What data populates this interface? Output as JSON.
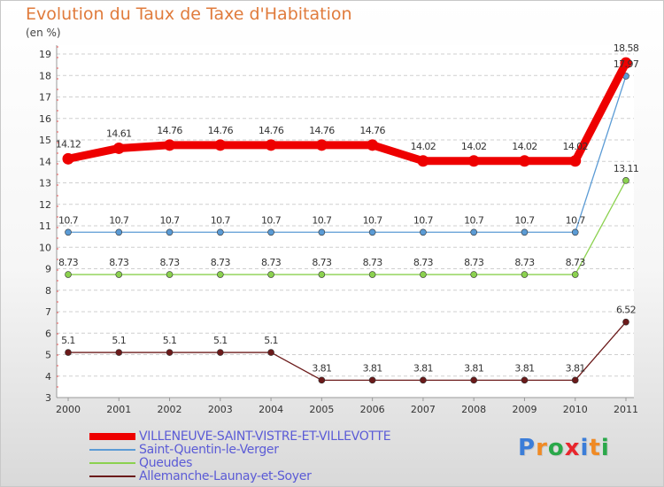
{
  "title": "Evolution du Taux de Taxe d'Habitation",
  "unit_label": "(en %)",
  "brand": {
    "text": "Proxiti",
    "colors": [
      "#3b7dd8",
      "#f08a24",
      "#2aa84a",
      "#e8262d",
      "#3b7dd8",
      "#f08a24",
      "#2aa84a"
    ]
  },
  "chart_data": {
    "type": "line",
    "x": [
      "2000",
      "2001",
      "2002",
      "2003",
      "2004",
      "2005",
      "2006",
      "2007",
      "2008",
      "2009",
      "2010",
      "2011"
    ],
    "ylim": [
      3,
      19
    ],
    "yticks": [
      3,
      4,
      5,
      6,
      7,
      8,
      9,
      10,
      11,
      12,
      13,
      14,
      15,
      16,
      17,
      18,
      19
    ],
    "grid": "horizontal dashed",
    "legend": "bottom-left",
    "series": [
      {
        "name": "VILLENEUVE-SAINT-VISTRE-ET-VILLEVOTTE",
        "color": "#ee0000",
        "values": [
          14.12,
          14.61,
          14.76,
          14.76,
          14.76,
          14.76,
          14.76,
          14.02,
          14.02,
          14.02,
          14.02,
          18.58
        ],
        "labels": [
          "14.12",
          "14.61",
          "14.76",
          "14.76",
          "14.76",
          "14.76",
          "14.76",
          "14.02",
          "14.02",
          "14.02",
          "14.02",
          "18.58"
        ]
      },
      {
        "name": "Saint-Quentin-le-Verger",
        "color": "#5b9bd5",
        "values": [
          10.7,
          10.7,
          10.7,
          10.7,
          10.7,
          10.7,
          10.7,
          10.7,
          10.7,
          10.7,
          10.7,
          17.97
        ],
        "labels": [
          "10.7",
          "10.7",
          "10.7",
          "10.7",
          "10.7",
          "10.7",
          "10.7",
          "10.7",
          "10.7",
          "10.7",
          "10.7",
          "17.97"
        ]
      },
      {
        "name": "Queudes",
        "color": "#8bd14f",
        "values": [
          8.73,
          8.73,
          8.73,
          8.73,
          8.73,
          8.73,
          8.73,
          8.73,
          8.73,
          8.73,
          8.73,
          13.11
        ],
        "labels": [
          "8.73",
          "8.73",
          "8.73",
          "8.73",
          "8.73",
          "8.73",
          "8.73",
          "8.73",
          "8.73",
          "8.73",
          "8.73",
          "13.11"
        ]
      },
      {
        "name": "Allemanche-Launay-et-Soyer",
        "color": "#6b1a1a",
        "values": [
          5.1,
          5.1,
          5.1,
          5.1,
          5.1,
          3.81,
          3.81,
          3.81,
          3.81,
          3.81,
          3.81,
          6.52
        ],
        "labels": [
          "5.1",
          "5.1",
          "5.1",
          "5.1",
          "5.1",
          "3.81",
          "3.81",
          "3.81",
          "3.81",
          "3.81",
          "3.81",
          "6.52"
        ]
      }
    ]
  }
}
